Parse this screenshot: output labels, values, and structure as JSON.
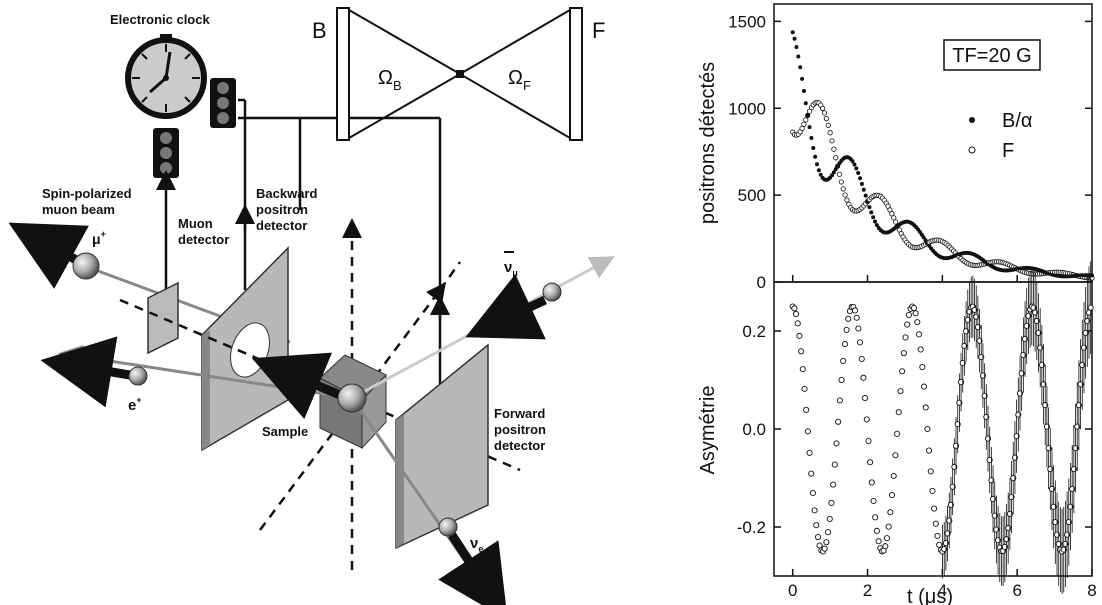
{
  "diagram": {
    "clock_label": "Electronic clock",
    "beam_label_1": "Spin-polarized",
    "beam_label_2": "muon beam",
    "muon_symbol": "μ",
    "muon_sup": "+",
    "muon_det_1": "Muon",
    "muon_det_2": "detector",
    "back_det_1": "Backward",
    "back_det_2": "positron",
    "back_det_3": "detector",
    "sample_label": "Sample",
    "fwd_det_1": "Forward",
    "fwd_det_2": "positron",
    "fwd_det_3": "detector",
    "positron_symbol": "e",
    "positron_sup": "+",
    "nu_mu_symbol": "ν",
    "nu_mu_sub": "μ",
    "nu_e_symbol": "ν",
    "nu_e_sub": "e",
    "solid_angle_left": "B",
    "solid_angle_right": "F",
    "omega_b": "Ω",
    "omega_b_sub": "B",
    "omega_f": "Ω",
    "omega_f_sub": "F"
  },
  "chart_data": [
    {
      "type": "scatter",
      "ylabel": "positrons détectés",
      "ylim": [
        0,
        1600
      ],
      "xlim": [
        -0.5,
        8
      ],
      "yticks": [
        "0",
        "500",
        "1000",
        "1500"
      ],
      "annotation": "TF=20 G",
      "legend": [
        "B/α",
        "F"
      ],
      "legend_position": "right",
      "series": [
        {
          "name": "B/α",
          "marker": "filled",
          "model": "N0*exp(-t/2.2)*(1+0.25*cos(2*pi*0.625*t))",
          "N0": 1150
        },
        {
          "name": "F",
          "marker": "open",
          "model": "N0*exp(-t/2.2)*(1-0.25*cos(2*pi*0.625*t))",
          "N0": 1150
        }
      ]
    },
    {
      "type": "scatter",
      "ylabel": "Asymétrie",
      "xlabel": "t (μs)",
      "ylim": [
        -0.3,
        0.3
      ],
      "xlim": [
        -0.5,
        8
      ],
      "xticks": [
        "0",
        "2",
        "4",
        "6",
        "8"
      ],
      "yticks": [
        "-0.2",
        "0.0",
        "0.2"
      ],
      "series": [
        {
          "name": "",
          "marker": "open",
          "model": "0.25*cos(2*pi*0.625*t)",
          "amplitude": 0.25,
          "frequency_MHz": 0.625
        }
      ]
    }
  ]
}
